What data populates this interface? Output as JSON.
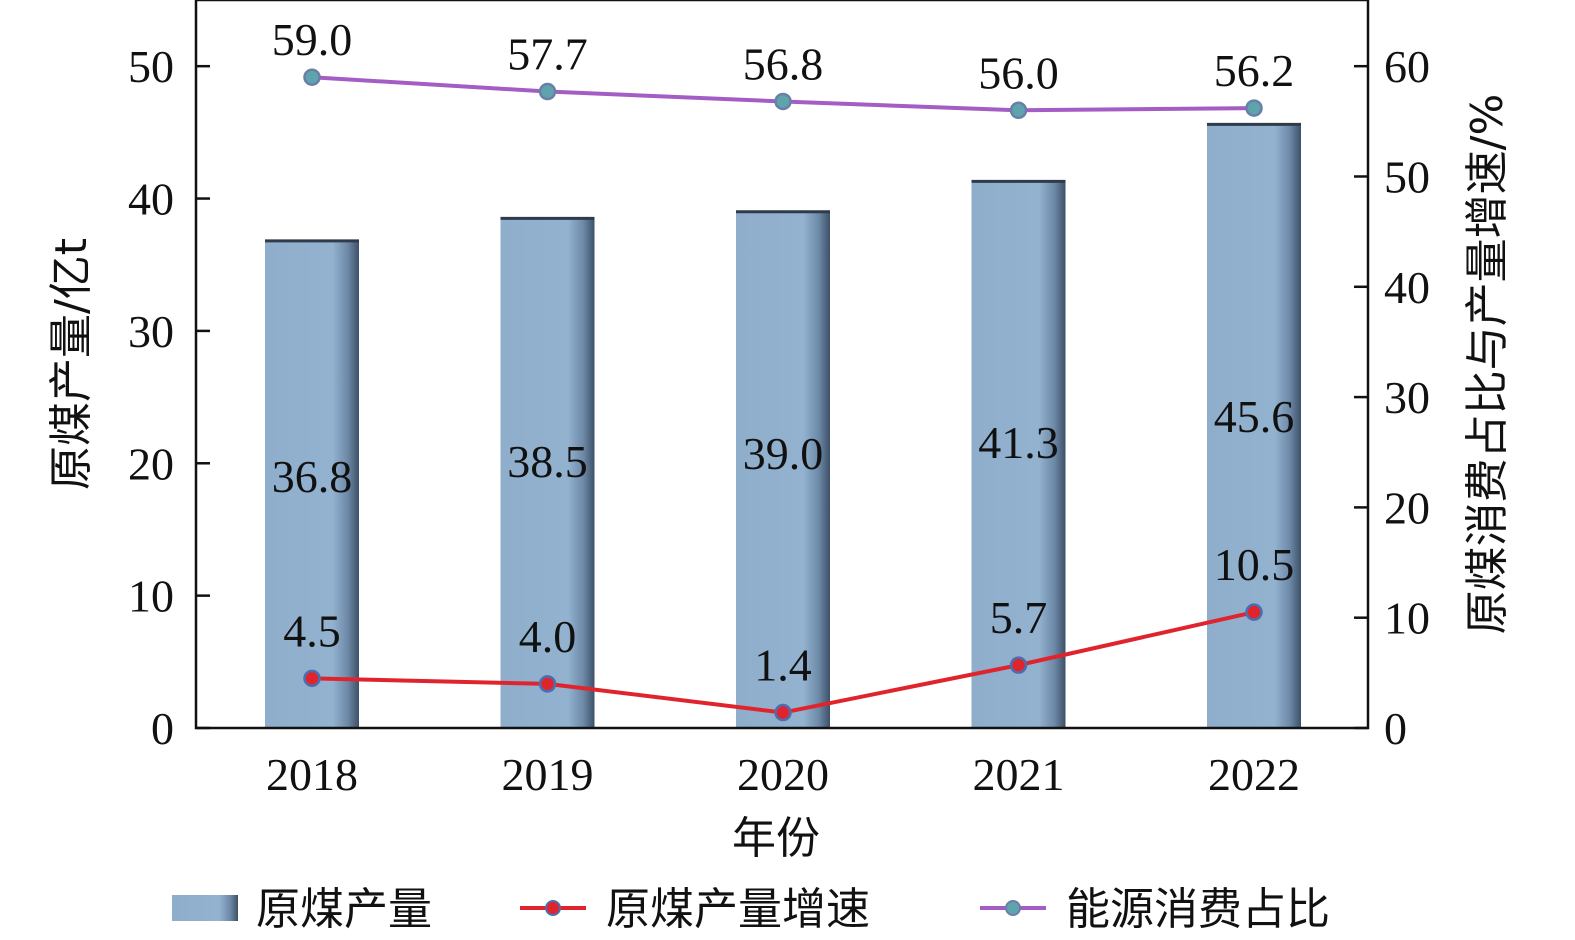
{
  "chart_data": {
    "type": "bar",
    "categories": [
      "2018",
      "2019",
      "2020",
      "2021",
      "2022"
    ],
    "xlabel": "年份",
    "ylabel": "原煤产量/亿t",
    "ylabel_right": "原煤消费占比与产量增速/%",
    "ylim": [
      0,
      55
    ],
    "ylim_right": [
      0,
      66
    ],
    "yticks": [
      0,
      10,
      20,
      30,
      40,
      50
    ],
    "yticks_right": [
      0,
      10,
      20,
      30,
      40,
      50,
      60
    ],
    "grid": false,
    "legend_position": "bottom",
    "series": [
      {
        "name": "原煤产量",
        "type": "bar",
        "axis": "left",
        "values": [
          36.8,
          38.5,
          39.0,
          41.3,
          45.6
        ],
        "labels": [
          "36.8",
          "38.5",
          "39.0",
          "41.3",
          "45.6"
        ],
        "color": "#8eaecb"
      },
      {
        "name": "原煤产量增速",
        "type": "line",
        "axis": "right",
        "values": [
          4.5,
          4.0,
          1.4,
          5.7,
          10.5
        ],
        "labels": [
          "4.5",
          "4.0",
          "1.4",
          "5.7",
          "10.5"
        ],
        "color": "#e0242e"
      },
      {
        "name": "能源消费占比",
        "type": "line",
        "axis": "right",
        "values": [
          59.0,
          57.7,
          56.8,
          56.0,
          56.2
        ],
        "labels": [
          "59.0",
          "57.7",
          "56.8",
          "56.0",
          "56.2"
        ],
        "color": "#a45dc4"
      }
    ]
  }
}
